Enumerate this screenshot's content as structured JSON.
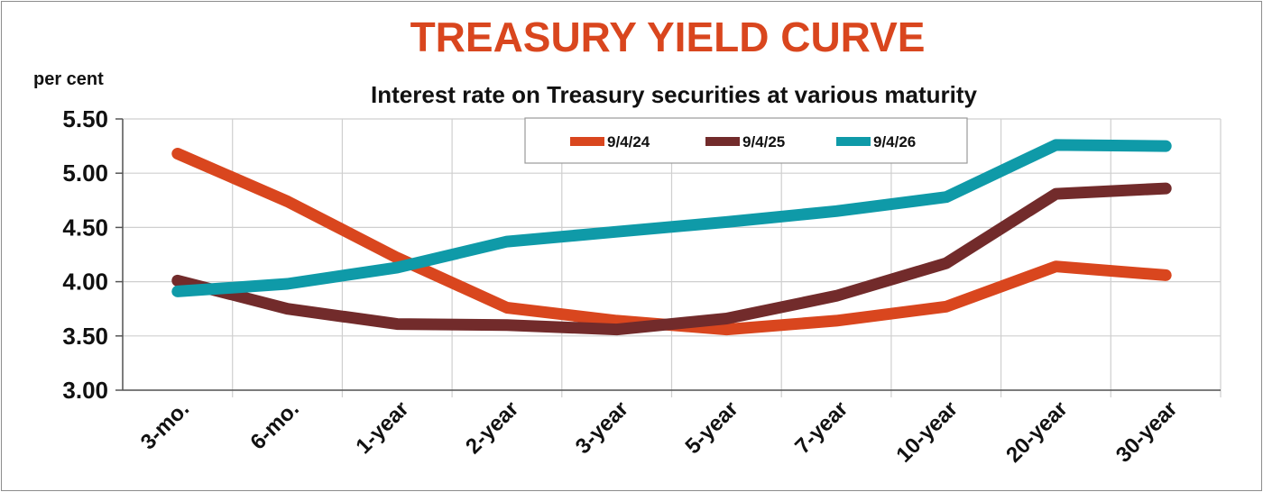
{
  "chart_data": {
    "type": "line",
    "title": "TREASURY YIELD CURVE",
    "subtitle": "Interest rate on Treasury securities at various maturity",
    "yunit": "per cent",
    "categories": [
      "3-mo.",
      "6-mo.",
      "1-year",
      "2-year",
      "3-year",
      "5-year",
      "7-year",
      "10-year",
      "20-year",
      "30-year"
    ],
    "ylim": [
      3.0,
      5.5
    ],
    "yticks": [
      "3.00",
      "3.50",
      "4.00",
      "4.50",
      "5.00",
      "5.50"
    ],
    "ytick_values": [
      3.0,
      3.5,
      4.0,
      4.5,
      5.0,
      5.5
    ],
    "grid": true,
    "legend_position": "top-center",
    "series": [
      {
        "name": "9/4/24",
        "color": "#d9461e",
        "values": [
          5.18,
          4.74,
          4.22,
          3.76,
          3.64,
          3.56,
          3.64,
          3.77,
          4.14,
          4.06
        ]
      },
      {
        "name": "9/4/25",
        "color": "#722b2b",
        "values": [
          4.01,
          3.75,
          3.61,
          3.6,
          3.56,
          3.66,
          3.87,
          4.17,
          4.81,
          4.86
        ]
      },
      {
        "name": "9/4/26",
        "color": "#0f9aa8",
        "values": [
          3.91,
          3.98,
          4.13,
          4.37,
          4.46,
          4.55,
          4.65,
          4.78,
          5.26,
          5.25
        ]
      }
    ]
  }
}
